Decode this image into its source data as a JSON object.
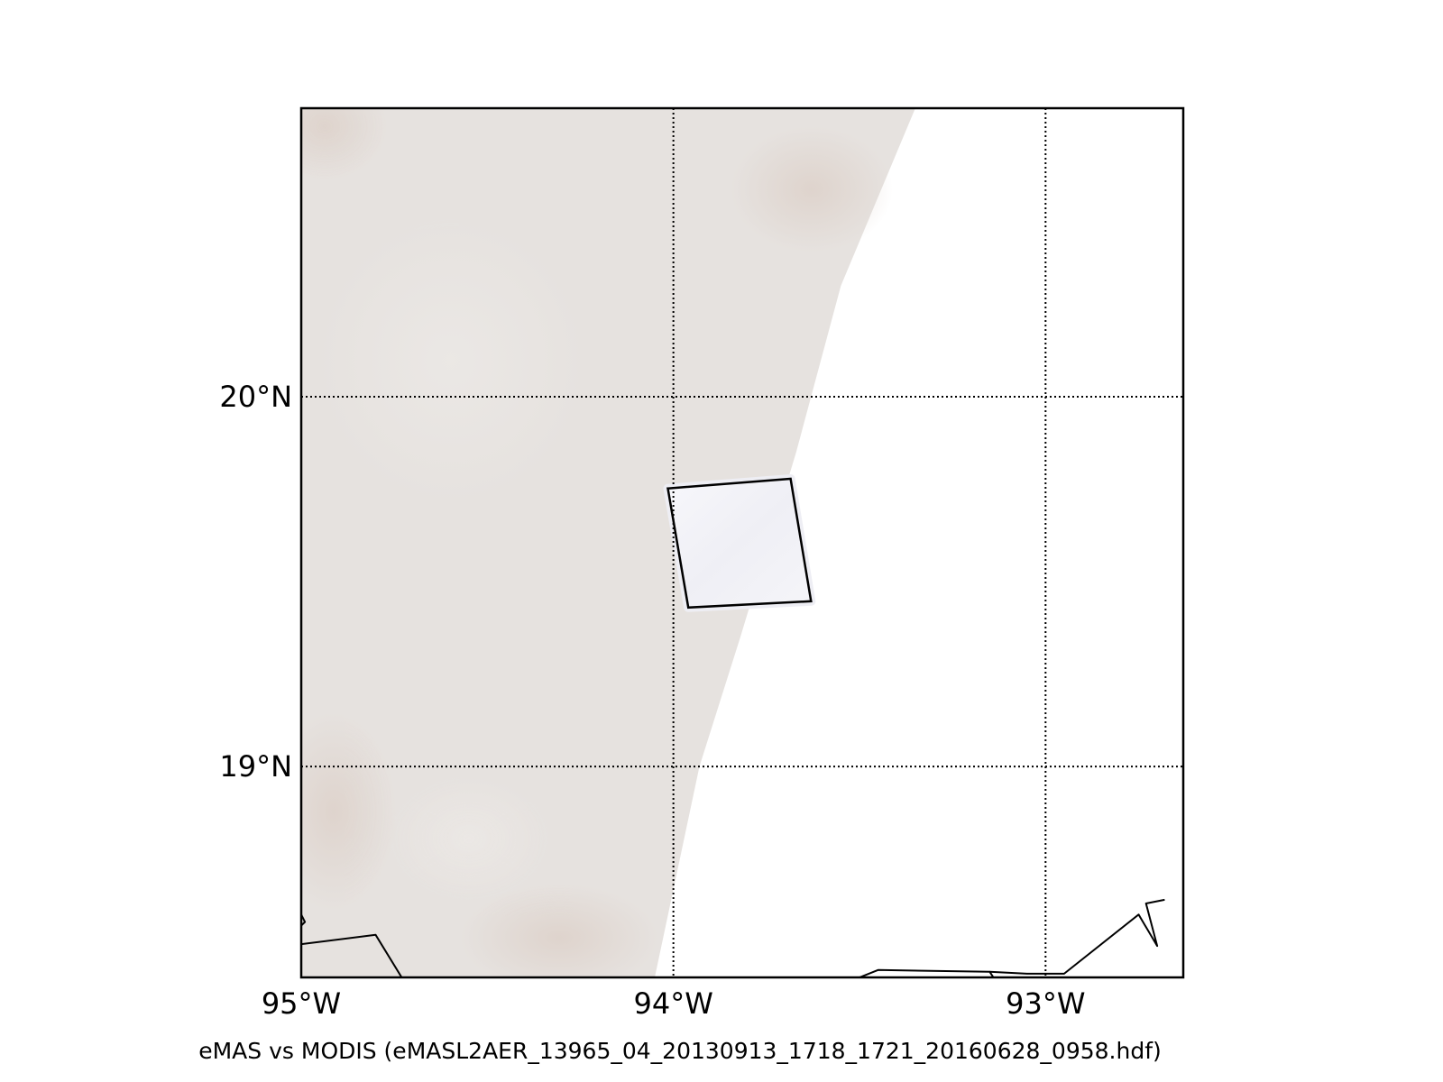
{
  "map": {
    "caption": "eMAS vs MODIS (eMASL2AER_13965_04_20130913_1718_1721_20160628_0958.hdf)",
    "longitude_range": [
      -95.0,
      -92.63
    ],
    "latitude_range": [
      18.43,
      20.78
    ],
    "meridians": [
      {
        "value": -95,
        "label": "95°W"
      },
      {
        "value": -94,
        "label": "94°W"
      },
      {
        "value": -93,
        "label": "93°W"
      }
    ],
    "parallels": [
      {
        "value": 20,
        "label": "20°N"
      },
      {
        "value": 19,
        "label": "19°N"
      }
    ],
    "grid_style": "dotted",
    "modis_swath": {
      "fill_color": "#e6e2df",
      "edge": [
        [
          -93.35,
          20.78
        ],
        [
          -93.55,
          20.3
        ],
        [
          -93.67,
          19.85
        ],
        [
          -93.82,
          19.35
        ],
        [
          -93.93,
          19.0
        ],
        [
          -94.05,
          18.43
        ]
      ]
    },
    "emas_granule": {
      "fill_color": "#f3f3f8",
      "corners": [
        [
          -94.015,
          19.752
        ],
        [
          -93.685,
          19.778
        ],
        [
          -93.63,
          19.447
        ],
        [
          -93.96,
          19.43
        ]
      ]
    },
    "coastlines": [
      [
        [
          -95.0,
          18.6
        ],
        [
          -94.99,
          18.58
        ],
        [
          -95.0,
          18.57
        ]
      ],
      [
        [
          -95.0,
          18.52
        ],
        [
          -94.8,
          18.545
        ],
        [
          -94.73,
          18.43
        ]
      ],
      [
        [
          -93.5,
          18.43
        ],
        [
          -93.45,
          18.45
        ],
        [
          -93.15,
          18.445
        ],
        [
          -93.14,
          18.43
        ]
      ],
      [
        [
          -93.15,
          18.445
        ],
        [
          -93.05,
          18.44
        ],
        [
          -92.95,
          18.44
        ],
        [
          -92.75,
          18.6
        ],
        [
          -92.7,
          18.515
        ],
        [
          -92.73,
          18.63
        ],
        [
          -92.68,
          18.64
        ]
      ]
    ]
  }
}
